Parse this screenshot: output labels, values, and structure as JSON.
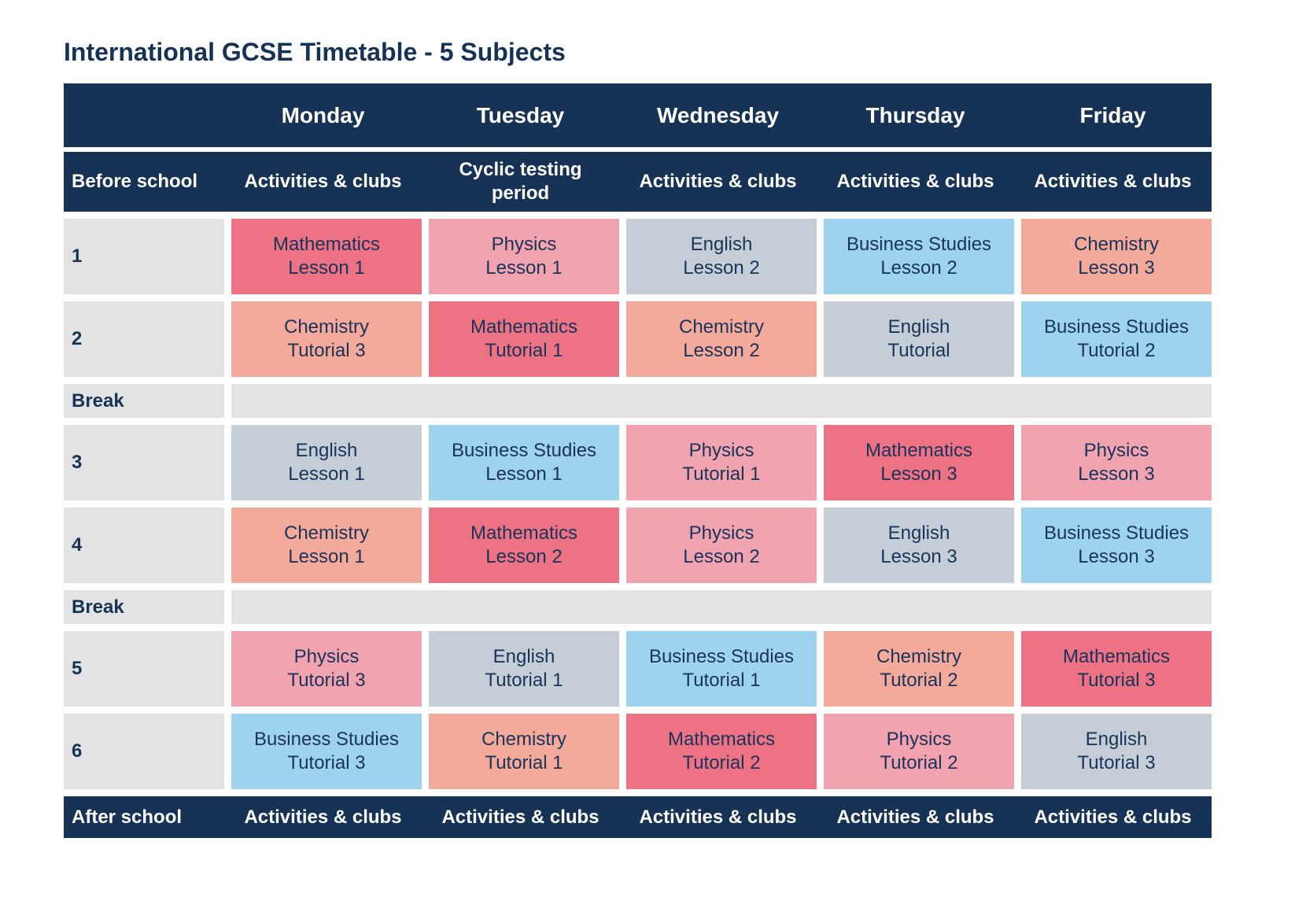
{
  "title": "International GCSE Timetable - 5 Subjects",
  "colors": {
    "navy": "#163356",
    "Mathematics": "#ec7284",
    "Physics": "#f2a3b0",
    "English": "#c5cdd7",
    "Business Studies": "#9dd3ee",
    "Chemistry": "#f4aa9a",
    "label_bg": "#e3e3e3"
  },
  "days": [
    "Monday",
    "Tuesday",
    "Wednesday",
    "Thursday",
    "Friday"
  ],
  "before_school": {
    "label": "Before school",
    "cells": [
      "Activities & clubs",
      "Cyclic testing\nperiod",
      "Activities & clubs",
      "Activities & clubs",
      "Activities & clubs"
    ]
  },
  "after_school": {
    "label": "After school",
    "cells": [
      "Activities & clubs",
      "Activities & clubs",
      "Activities & clubs",
      "Activities & clubs",
      "Activities & clubs"
    ]
  },
  "rows": [
    {
      "type": "lesson",
      "label": "1",
      "cells": [
        {
          "subject": "Mathematics",
          "session": "Lesson 1"
        },
        {
          "subject": "Physics",
          "session": "Lesson 1"
        },
        {
          "subject": "English",
          "session": "Lesson 2"
        },
        {
          "subject": "Business Studies",
          "session": "Lesson 2"
        },
        {
          "subject": "Chemistry",
          "session": "Lesson 3"
        }
      ]
    },
    {
      "type": "lesson",
      "label": "2",
      "cells": [
        {
          "subject": "Chemistry",
          "session": "Tutorial 3"
        },
        {
          "subject": "Mathematics",
          "session": "Tutorial 1"
        },
        {
          "subject": "Chemistry",
          "session": "Lesson 2"
        },
        {
          "subject": "English",
          "session": "Tutorial"
        },
        {
          "subject": "Business Studies",
          "session": "Tutorial 2"
        }
      ]
    },
    {
      "type": "break",
      "label": "Break"
    },
    {
      "type": "lesson",
      "label": "3",
      "cells": [
        {
          "subject": "English",
          "session": "Lesson 1"
        },
        {
          "subject": "Business Studies",
          "session": "Lesson 1"
        },
        {
          "subject": "Physics",
          "session": "Tutorial 1"
        },
        {
          "subject": "Mathematics",
          "session": "Lesson 3"
        },
        {
          "subject": "Physics",
          "session": "Lesson 3"
        }
      ]
    },
    {
      "type": "lesson",
      "label": "4",
      "cells": [
        {
          "subject": "Chemistry",
          "session": "Lesson 1"
        },
        {
          "subject": "Mathematics",
          "session": "Lesson 2"
        },
        {
          "subject": "Physics",
          "session": "Lesson 2"
        },
        {
          "subject": "English",
          "session": "Lesson 3"
        },
        {
          "subject": "Business Studies",
          "session": "Lesson 3"
        }
      ]
    },
    {
      "type": "break",
      "label": "Break"
    },
    {
      "type": "lesson",
      "label": "5",
      "cells": [
        {
          "subject": "Physics",
          "session": "Tutorial 3"
        },
        {
          "subject": "English",
          "session": "Tutorial 1"
        },
        {
          "subject": "Business Studies",
          "session": "Tutorial 1"
        },
        {
          "subject": "Chemistry",
          "session": "Tutorial 2"
        },
        {
          "subject": "Mathematics",
          "session": "Tutorial 3"
        }
      ]
    },
    {
      "type": "lesson",
      "label": "6",
      "cells": [
        {
          "subject": "Business Studies",
          "session": "Tutorial 3"
        },
        {
          "subject": "Chemistry",
          "session": "Tutorial 1"
        },
        {
          "subject": "Mathematics",
          "session": "Tutorial 2"
        },
        {
          "subject": "Physics",
          "session": "Tutorial 2"
        },
        {
          "subject": "English",
          "session": "Tutorial 3"
        }
      ]
    }
  ]
}
